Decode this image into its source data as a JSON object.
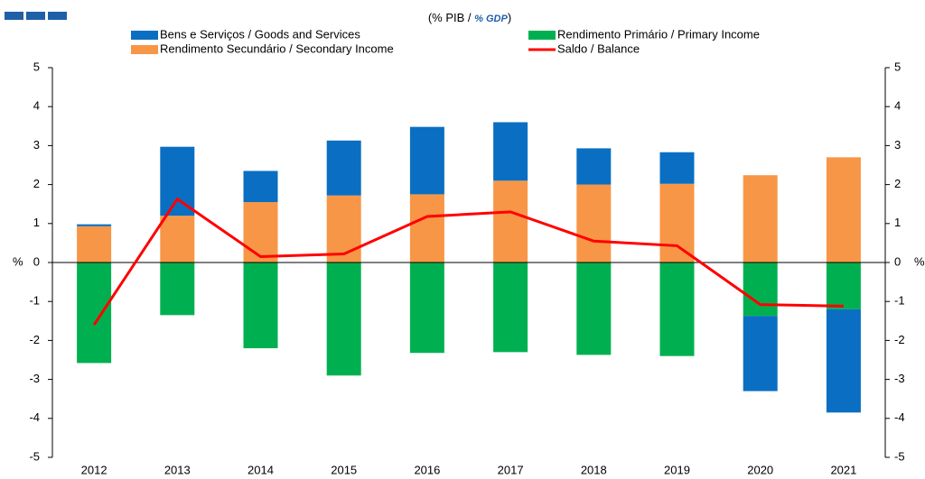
{
  "chart_data": {
    "type": "bar",
    "subtitle": [
      "(% PIB / ",
      "% GDP",
      ")"
    ],
    "y_label": "%",
    "y2_label": "%",
    "categories": [
      "2012",
      "2013",
      "2014",
      "2015",
      "2016",
      "2017",
      "2018",
      "2019",
      "2020",
      "2021"
    ],
    "series": [
      {
        "name": "Bens e Serviços / Goods and Services",
        "type": "bar",
        "color": "#0a6fc2",
        "values": [
          0.05,
          1.77,
          0.8,
          1.41,
          1.73,
          1.5,
          0.93,
          0.81,
          -1.93,
          -2.65
        ]
      },
      {
        "name": "Rendimento Primário / Primary Income",
        "type": "bar",
        "color": "#00b050",
        "values": [
          -2.58,
          -1.35,
          -2.2,
          -2.9,
          -2.32,
          -2.3,
          -2.37,
          -2.4,
          -1.37,
          -1.2
        ]
      },
      {
        "name": "Rendimento Secundário / Secondary Income",
        "type": "bar",
        "color": "#f79646",
        "values": [
          0.93,
          1.2,
          1.55,
          1.72,
          1.75,
          2.1,
          2.0,
          2.02,
          2.24,
          2.7
        ]
      },
      {
        "name": "Saldo / Balance",
        "type": "line",
        "color": "#ff0000",
        "values": [
          -1.6,
          1.63,
          0.15,
          0.22,
          1.18,
          1.3,
          0.55,
          0.43,
          -1.08,
          -1.12
        ]
      }
    ],
    "stacked": true,
    "ylim": [
      -5,
      5
    ],
    "yticks": [
      -5,
      -4,
      -3,
      -2,
      -1,
      0,
      1,
      2,
      3,
      4,
      5
    ],
    "y2lim": [
      -5,
      5
    ],
    "y2ticks": [
      -5,
      -4,
      -3,
      -2,
      -1,
      0,
      1,
      2,
      3,
      4,
      5
    ]
  }
}
